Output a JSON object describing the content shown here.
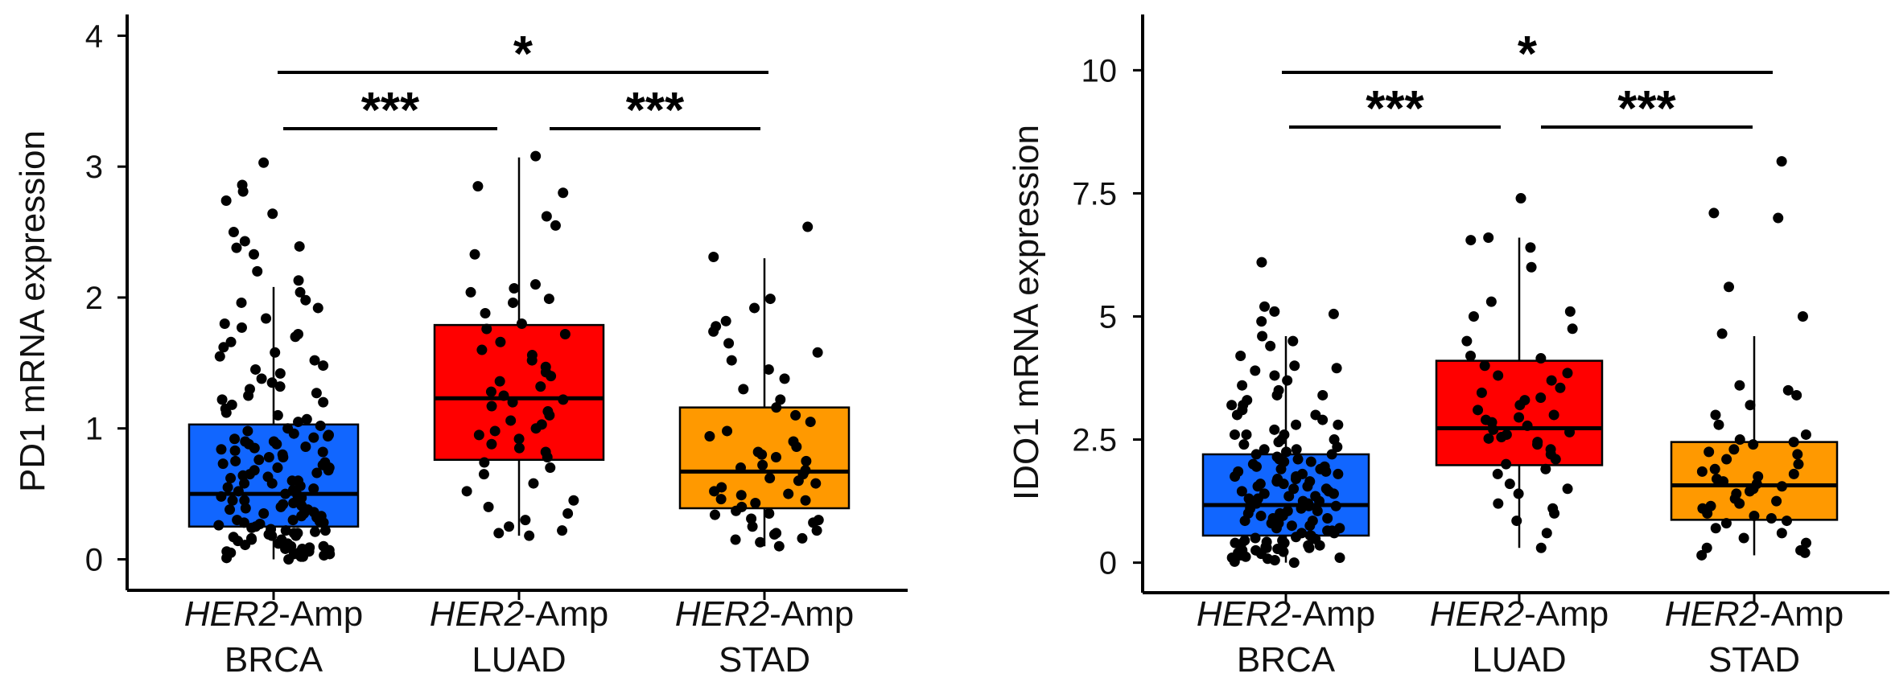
{
  "chart_data": [
    {
      "type": "box",
      "ylabel": "PD1 mRNA expression",
      "ylim": [
        -0.12,
        4.15
      ],
      "yticks": [
        0,
        1,
        2,
        3,
        4
      ],
      "ytick_labels": [
        "0",
        "1",
        "2",
        "3",
        "4"
      ],
      "categories": [
        {
          "gene": "HER2",
          "suffix": "-Amp",
          "cancer": "BRCA",
          "color": "#1166FF",
          "q1": 0.25,
          "median": 0.5,
          "q3": 1.03,
          "whisker_low": 0.0,
          "whisker_high": 2.08,
          "points": [
            3.03,
            2.86,
            2.81,
            2.74,
            2.64,
            2.5,
            2.43,
            2.39,
            2.38,
            2.33,
            2.2,
            2.13,
            2.04,
            1.98,
            1.96,
            1.92,
            1.84,
            1.8,
            1.77,
            1.72,
            1.7,
            1.66,
            1.62,
            1.58,
            1.55,
            1.52,
            1.48,
            1.45,
            1.42,
            1.38,
            1.35,
            1.32,
            1.3,
            1.27,
            1.25,
            1.22,
            1.2,
            1.18,
            1.15,
            1.12,
            1.1,
            1.07,
            1.05,
            1.02,
            1.0,
            0.98,
            0.96,
            0.94,
            0.92,
            0.9,
            0.88,
            0.86,
            0.84,
            0.82,
            0.8,
            0.78,
            0.76,
            0.74,
            0.72,
            0.7,
            0.68,
            0.66,
            0.64,
            0.62,
            0.6,
            0.58,
            0.56,
            0.54,
            0.52,
            0.5,
            0.49,
            0.47,
            0.45,
            0.44,
            0.42,
            0.41,
            0.39,
            0.38,
            0.36,
            0.35,
            0.33,
            0.32,
            0.3,
            0.29,
            0.28,
            0.27,
            0.26,
            0.25,
            0.24,
            0.23,
            0.22,
            0.21,
            0.2,
            0.19,
            0.18,
            0.17,
            0.16,
            0.15,
            0.14,
            0.13,
            0.12,
            0.11,
            0.1,
            0.09,
            0.08,
            0.07,
            0.06,
            0.05,
            0.04,
            0.03,
            0.02,
            0.01,
            0.0,
            0.55,
            0.6,
            0.65,
            0.7,
            0.75,
            0.85,
            0.9,
            0.95,
            0.3,
            0.35,
            0.4,
            0.45,
            0.2,
            0.15,
            0.1,
            0.05,
            0.12,
            0.18,
            0.22,
            0.28,
            0.33,
            0.38,
            0.43,
            0.48,
            0.53,
            0.58,
            0.63,
            0.68,
            0.73,
            0.78,
            0.83,
            0.88,
            0.93,
            0.08,
            0.06,
            0.04,
            0.02
          ]
        },
        {
          "gene": "HER2",
          "suffix": "-Amp",
          "cancer": "LUAD",
          "color": "#FF0000",
          "q1": 0.76,
          "median": 1.23,
          "q3": 1.79,
          "whisker_low": 0.18,
          "whisker_high": 3.07,
          "points": [
            3.08,
            2.85,
            2.8,
            2.62,
            2.55,
            2.33,
            2.1,
            2.07,
            2.04,
            1.99,
            1.96,
            1.88,
            1.8,
            1.76,
            1.72,
            1.66,
            1.6,
            1.56,
            1.52,
            1.47,
            1.43,
            1.4,
            1.36,
            1.32,
            1.28,
            1.25,
            1.22,
            1.2,
            1.17,
            1.13,
            1.1,
            1.06,
            1.03,
            1.0,
            0.98,
            0.95,
            0.92,
            0.88,
            0.85,
            0.82,
            0.78,
            0.74,
            0.7,
            0.65,
            0.58,
            0.52,
            0.45,
            0.4,
            0.35,
            0.3,
            0.25,
            0.22,
            0.2,
            0.18
          ]
        },
        {
          "gene": "HER2",
          "suffix": "-Amp",
          "cancer": "STAD",
          "color": "#FF9900",
          "q1": 0.39,
          "median": 0.67,
          "q3": 1.16,
          "whisker_low": 0.1,
          "whisker_high": 2.3,
          "points": [
            2.54,
            2.31,
            1.99,
            1.92,
            1.82,
            1.78,
            1.74,
            1.65,
            1.58,
            1.52,
            1.45,
            1.38,
            1.3,
            1.22,
            1.16,
            1.1,
            1.05,
            0.98,
            0.94,
            0.9,
            0.86,
            0.82,
            0.78,
            0.75,
            0.72,
            0.68,
            0.65,
            0.62,
            0.58,
            0.55,
            0.52,
            0.49,
            0.46,
            0.43,
            0.4,
            0.37,
            0.34,
            0.31,
            0.28,
            0.25,
            0.22,
            0.19,
            0.16,
            0.13,
            0.1,
            0.6,
            0.7,
            0.8,
            0.5,
            0.45,
            0.35,
            0.3,
            0.2,
            0.15
          ]
        }
      ],
      "significance": [
        {
          "from": 0,
          "to": 2,
          "label": "*"
        },
        {
          "from": 0,
          "to": 1,
          "label": "***"
        },
        {
          "from": 1,
          "to": 2,
          "label": "***"
        }
      ]
    },
    {
      "type": "box",
      "ylabel": "IDO1 mRNA expression",
      "ylim": [
        -0.3,
        11.1
      ],
      "yticks": [
        0,
        2.5,
        5,
        7.5,
        10
      ],
      "ytick_labels": [
        "0",
        "2.5",
        "5",
        "7.5",
        "10"
      ],
      "categories": [
        {
          "gene": "HER2",
          "suffix": "-Amp",
          "cancer": "BRCA",
          "color": "#1166FF",
          "q1": 0.55,
          "median": 1.17,
          "q3": 2.2,
          "whisker_low": 0.0,
          "whisker_high": 4.6,
          "points": [
            6.1,
            5.2,
            5.1,
            5.05,
            4.9,
            4.6,
            4.5,
            4.4,
            4.2,
            4.0,
            3.95,
            3.9,
            3.8,
            3.7,
            3.6,
            3.5,
            3.4,
            3.3,
            3.2,
            3.1,
            3.0,
            2.9,
            2.8,
            2.7,
            2.6,
            2.5,
            2.45,
            2.4,
            2.35,
            2.3,
            2.25,
            2.2,
            2.15,
            2.1,
            2.05,
            2.0,
            1.95,
            1.9,
            1.85,
            1.8,
            1.75,
            1.7,
            1.65,
            1.6,
            1.55,
            1.5,
            1.45,
            1.4,
            1.35,
            1.3,
            1.25,
            1.2,
            1.15,
            1.1,
            1.05,
            1.0,
            0.95,
            0.9,
            0.85,
            0.8,
            0.75,
            0.7,
            0.65,
            0.6,
            0.55,
            0.5,
            0.45,
            0.4,
            0.35,
            0.3,
            0.25,
            0.2,
            0.15,
            0.1,
            0.05,
            0.02,
            0.0,
            1.2,
            1.4,
            1.6,
            1.8,
            2.2,
            2.6,
            3.0,
            0.3,
            0.6,
            0.9,
            1.1,
            1.3,
            1.5,
            1.7,
            1.9,
            2.1,
            2.3,
            2.5,
            0.1,
            0.2,
            0.4,
            0.7,
            0.8,
            1.0,
            1.25,
            1.45,
            1.65,
            1.85,
            2.05,
            2.6,
            2.8,
            3.2,
            3.4,
            0.05,
            0.15,
            0.25,
            0.35,
            0.45,
            0.55,
            0.65,
            0.75,
            0.85,
            0.95,
            1.05,
            1.15,
            1.35,
            1.55,
            1.75,
            1.95,
            0.08,
            0.12,
            0.18,
            0.22,
            0.28,
            0.32,
            0.38,
            0.42,
            0.48,
            0.52
          ]
        },
        {
          "gene": "HER2",
          "suffix": "-Amp",
          "cancer": "LUAD",
          "color": "#FF0000",
          "q1": 1.98,
          "median": 2.73,
          "q3": 4.1,
          "whisker_low": 0.3,
          "whisker_high": 6.6,
          "points": [
            7.4,
            6.6,
            6.55,
            6.4,
            6.0,
            5.3,
            5.1,
            5.0,
            4.75,
            4.5,
            4.2,
            4.15,
            4.0,
            3.85,
            3.7,
            3.55,
            3.45,
            3.35,
            3.2,
            3.1,
            3.0,
            2.95,
            2.85,
            2.78,
            2.7,
            2.65,
            2.6,
            2.52,
            2.45,
            2.4,
            2.3,
            2.2,
            2.1,
            2.0,
            1.9,
            1.8,
            1.6,
            1.5,
            1.4,
            1.2,
            1.1,
            1.0,
            0.85,
            0.6,
            0.3,
            2.55,
            2.9,
            3.3,
            3.8
          ]
        },
        {
          "gene": "HER2",
          "suffix": "-Amp",
          "cancer": "STAD",
          "color": "#FF9900",
          "q1": 0.87,
          "median": 1.57,
          "q3": 2.45,
          "whisker_low": 0.15,
          "whisker_high": 4.6,
          "points": [
            8.15,
            7.1,
            7.0,
            5.6,
            5.0,
            4.65,
            3.6,
            3.5,
            3.4,
            3.2,
            3.0,
            2.8,
            2.6,
            2.5,
            2.4,
            2.3,
            2.2,
            2.1,
            2.0,
            1.9,
            1.8,
            1.7,
            1.6,
            1.55,
            1.5,
            1.45,
            1.4,
            1.3,
            1.2,
            1.1,
            1.0,
            0.9,
            0.8,
            0.7,
            0.6,
            0.5,
            0.4,
            0.3,
            0.25,
            0.2,
            0.15,
            1.65,
            1.75,
            1.85,
            1.25,
            1.15,
            0.95,
            0.85,
            2.25,
            2.45
          ]
        }
      ],
      "significance": [
        {
          "from": 0,
          "to": 2,
          "label": "*"
        },
        {
          "from": 0,
          "to": 1,
          "label": "***"
        },
        {
          "from": 1,
          "to": 2,
          "label": "***"
        }
      ]
    }
  ]
}
